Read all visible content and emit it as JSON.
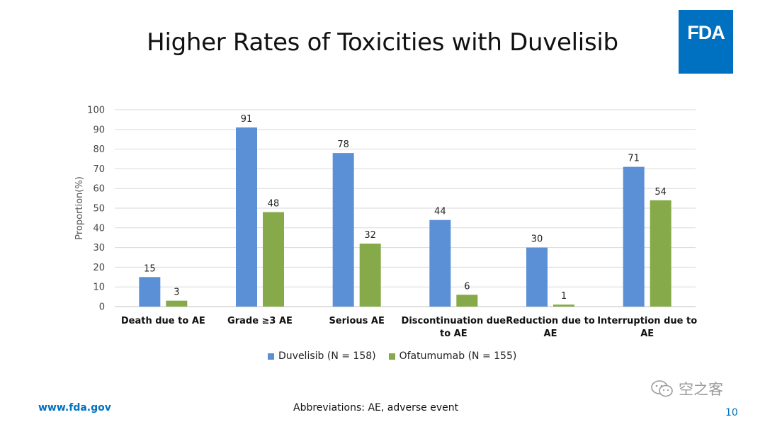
{
  "slide": {
    "title": "Higher Rates of Toxicities with Duvelisib",
    "logo_text": "FDA",
    "footer_url": "www.fda.gov",
    "footnote": "Abbreviations: AE, adverse event",
    "page_number": "10",
    "watermark_text": "空之客"
  },
  "colors": {
    "duvelisib": "#5b8fd6",
    "ofatumumab": "#86aa4a",
    "accent": "#0070c0",
    "grid": "#d9d9d9"
  },
  "chart_data": {
    "type": "bar",
    "categories": [
      [
        "Death due to AE"
      ],
      [
        "Grade ≥3 AE"
      ],
      [
        "Serious AE"
      ],
      [
        "Discontinuation due",
        "to AE"
      ],
      [
        "Reduction due to",
        "AE"
      ],
      [
        "Interruption due to",
        "AE"
      ]
    ],
    "series": [
      {
        "name": "Duvelisib (N = 158)",
        "values": [
          15,
          91,
          78,
          44,
          30,
          71
        ]
      },
      {
        "name": "Ofatumumab (N = 155)",
        "values": [
          3,
          48,
          32,
          6,
          1,
          54
        ]
      }
    ],
    "ylabel": "Proportion(%)",
    "xlabel": "",
    "ylim": [
      0,
      100
    ],
    "yticks": [
      0,
      10,
      20,
      30,
      40,
      50,
      60,
      70,
      80,
      90,
      100
    ],
    "grid": true,
    "legend_position": "bottom"
  }
}
